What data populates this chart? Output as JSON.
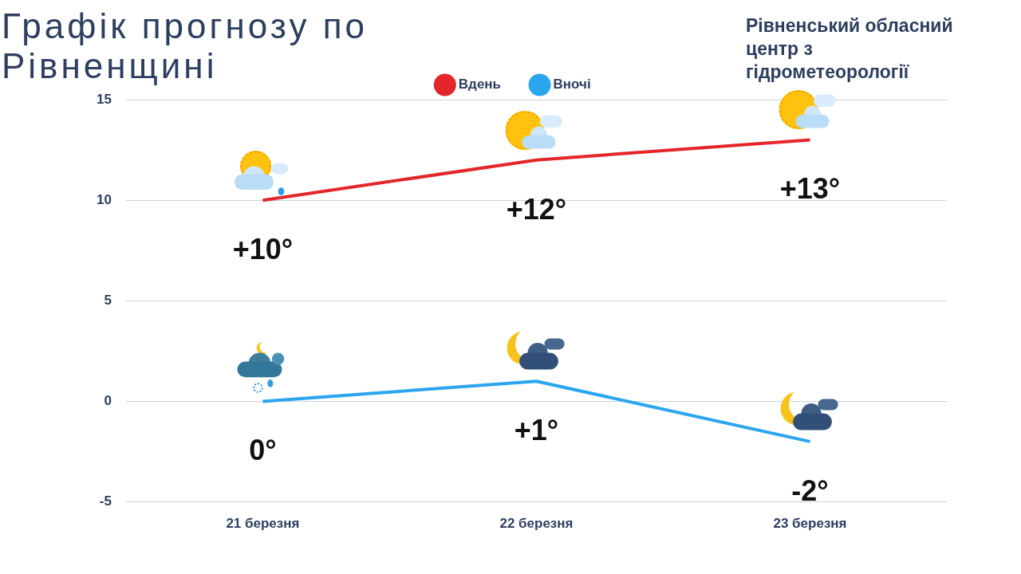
{
  "chart_data": {
    "type": "line",
    "title": "Графік прогнозу по Рівненщині",
    "annotations": [
      "Рівненський обласний центр з гідрометеорології"
    ],
    "categories": [
      "21 березня",
      "22 березня",
      "23 березня"
    ],
    "series": [
      {
        "name": "Вдень",
        "color": "#e3262a",
        "values": [
          10,
          12,
          13
        ],
        "value_labels": [
          "+10°",
          "+12°",
          "+13°"
        ]
      },
      {
        "name": "Вночі",
        "color": "#2aa5ee",
        "values": [
          0,
          1,
          -2
        ],
        "value_labels": [
          "0°",
          "+1°",
          "-2°"
        ]
      }
    ],
    "ylim": [
      -5,
      15
    ],
    "yticks": [
      -5,
      0,
      5,
      10,
      15
    ],
    "grid": "y",
    "legend": "top",
    "marker": "none",
    "line_style": "solid"
  }
}
